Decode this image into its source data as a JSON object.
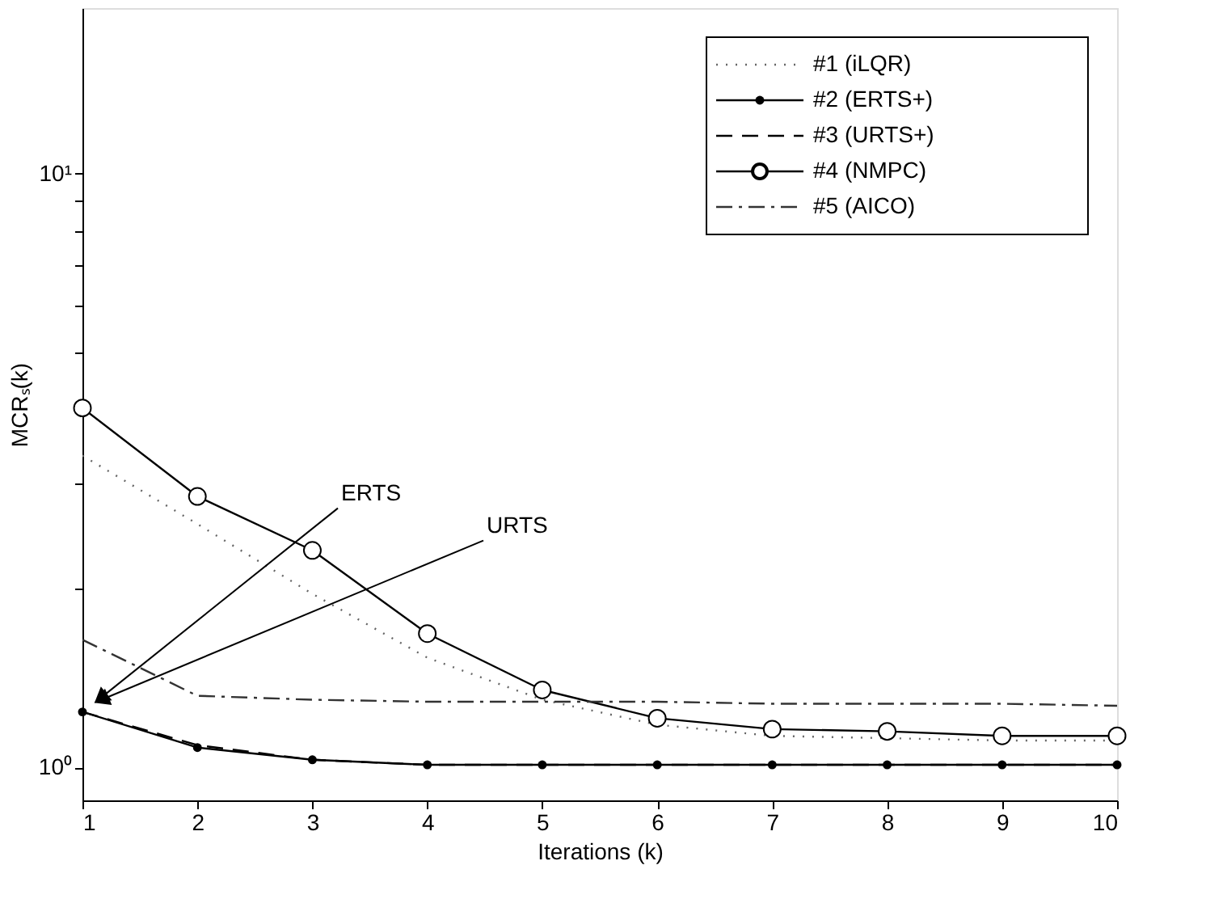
{
  "chart_data": {
    "type": "line",
    "xlabel": "Iterations (k)",
    "ylabel": "MCRₛ(k)",
    "x": [
      1,
      2,
      3,
      4,
      5,
      6,
      7,
      8,
      9,
      10
    ],
    "series": [
      {
        "name": "#1 (iLQR)",
        "color": "#666666",
        "line_style": "dotted",
        "marker": "none",
        "values": [
          3.35,
          2.57,
          1.96,
          1.53,
          1.3,
          1.18,
          1.13,
          1.12,
          1.11,
          1.11
        ]
      },
      {
        "name": "#2 (ERTS+)",
        "color": "#000000",
        "line_style": "solid",
        "marker": "circle",
        "values": [
          1.24,
          1.08,
          1.03,
          1.01,
          1.01,
          1.01,
          1.01,
          1.01,
          1.01,
          1.01
        ]
      },
      {
        "name": "#3 (URTS+)",
        "color": "#000000",
        "line_style": "dashed",
        "marker": "none",
        "values": [
          1.24,
          1.09,
          1.03,
          1.01,
          1.01,
          1.01,
          1.01,
          1.01,
          1.01,
          1.01
        ]
      },
      {
        "name": "#4 (NMPC)",
        "color": "#000000",
        "line_style": "solid",
        "marker": "circle",
        "values": [
          4.03,
          2.86,
          2.32,
          1.68,
          1.35,
          1.21,
          1.16,
          1.15,
          1.13,
          1.13
        ]
      },
      {
        "name": "#5 (AICO)",
        "color": "#333333",
        "line_style": "dashdot",
        "marker": "none",
        "values": [
          1.64,
          1.32,
          1.3,
          1.29,
          1.29,
          1.29,
          1.28,
          1.28,
          1.28,
          1.27
        ]
      }
    ],
    "xlim": [
      1,
      10
    ],
    "xticks": [
      1,
      2,
      3,
      4,
      5,
      6,
      7,
      8,
      9,
      10
    ],
    "ylim": [
      0.88,
      19
    ],
    "log": true,
    "yticks": [
      {
        "value": 1,
        "label": "10⁰"
      },
      {
        "value": 2,
        "label": null
      },
      {
        "value": 3,
        "label": null
      },
      {
        "value": 4,
        "label": null
      },
      {
        "value": 5,
        "label": null
      },
      {
        "value": 6,
        "label": null
      },
      {
        "value": 7,
        "label": null
      },
      {
        "value": 8,
        "label": null
      },
      {
        "value": 9,
        "label": null
      },
      {
        "value": 10,
        "label": "10¹"
      }
    ],
    "annotations": [
      "ERTS",
      "URTS"
    ],
    "grid": false,
    "legend": "top right"
  }
}
